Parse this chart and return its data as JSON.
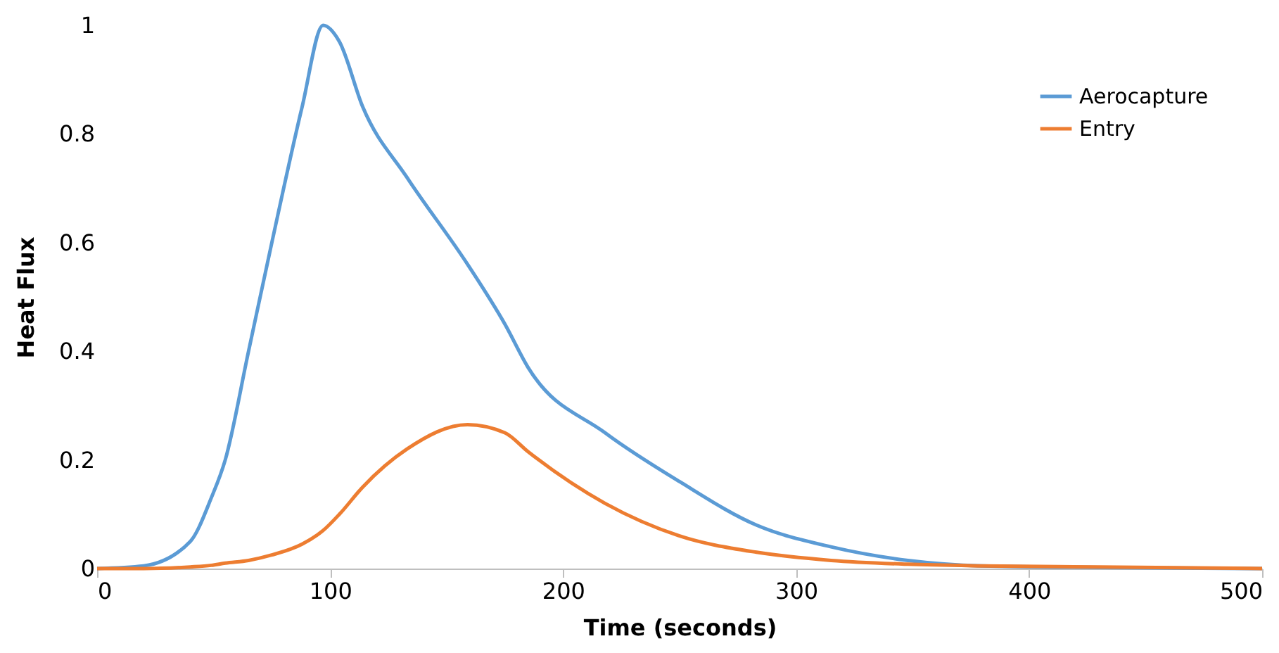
{
  "chart_data": {
    "type": "line",
    "xlabel": "Time (seconds)",
    "ylabel": "Heat Flux",
    "xlim": [
      0,
      500
    ],
    "xticks": [
      0,
      100,
      200,
      300,
      400,
      500
    ],
    "ylim": [
      0,
      1
    ],
    "yticks": [
      0,
      0.2,
      0.4,
      0.6,
      0.8,
      1
    ],
    "grid": false,
    "legend": "top right",
    "marker": "none",
    "line_style": "solid",
    "x": [
      0,
      20,
      40,
      49,
      55,
      65,
      75,
      88,
      97,
      104,
      114,
      133,
      159,
      175,
      185,
      218,
      250,
      283,
      315,
      348,
      380,
      430,
      500
    ],
    "series": [
      {
        "name": "Aerocapture",
        "color": "#5b9bd5",
        "values": [
          0,
          0.005,
          0.05,
          0.13,
          0.2,
          0.4,
          0.6,
          0.85,
          1.0,
          0.97,
          0.85,
          0.72,
          0.56,
          0.45,
          0.37,
          0.25,
          0.16,
          0.08,
          0.04,
          0.015,
          0.005,
          0.002,
          0
        ]
      },
      {
        "name": "Entry",
        "color": "#ed7d31",
        "values": [
          0,
          0,
          0.003,
          0.006,
          0.01,
          0.015,
          0.025,
          0.045,
          0.07,
          0.1,
          0.15,
          0.22,
          0.265,
          0.25,
          0.215,
          0.12,
          0.06,
          0.03,
          0.015,
          0.008,
          0.005,
          0.003,
          0
        ]
      }
    ]
  }
}
